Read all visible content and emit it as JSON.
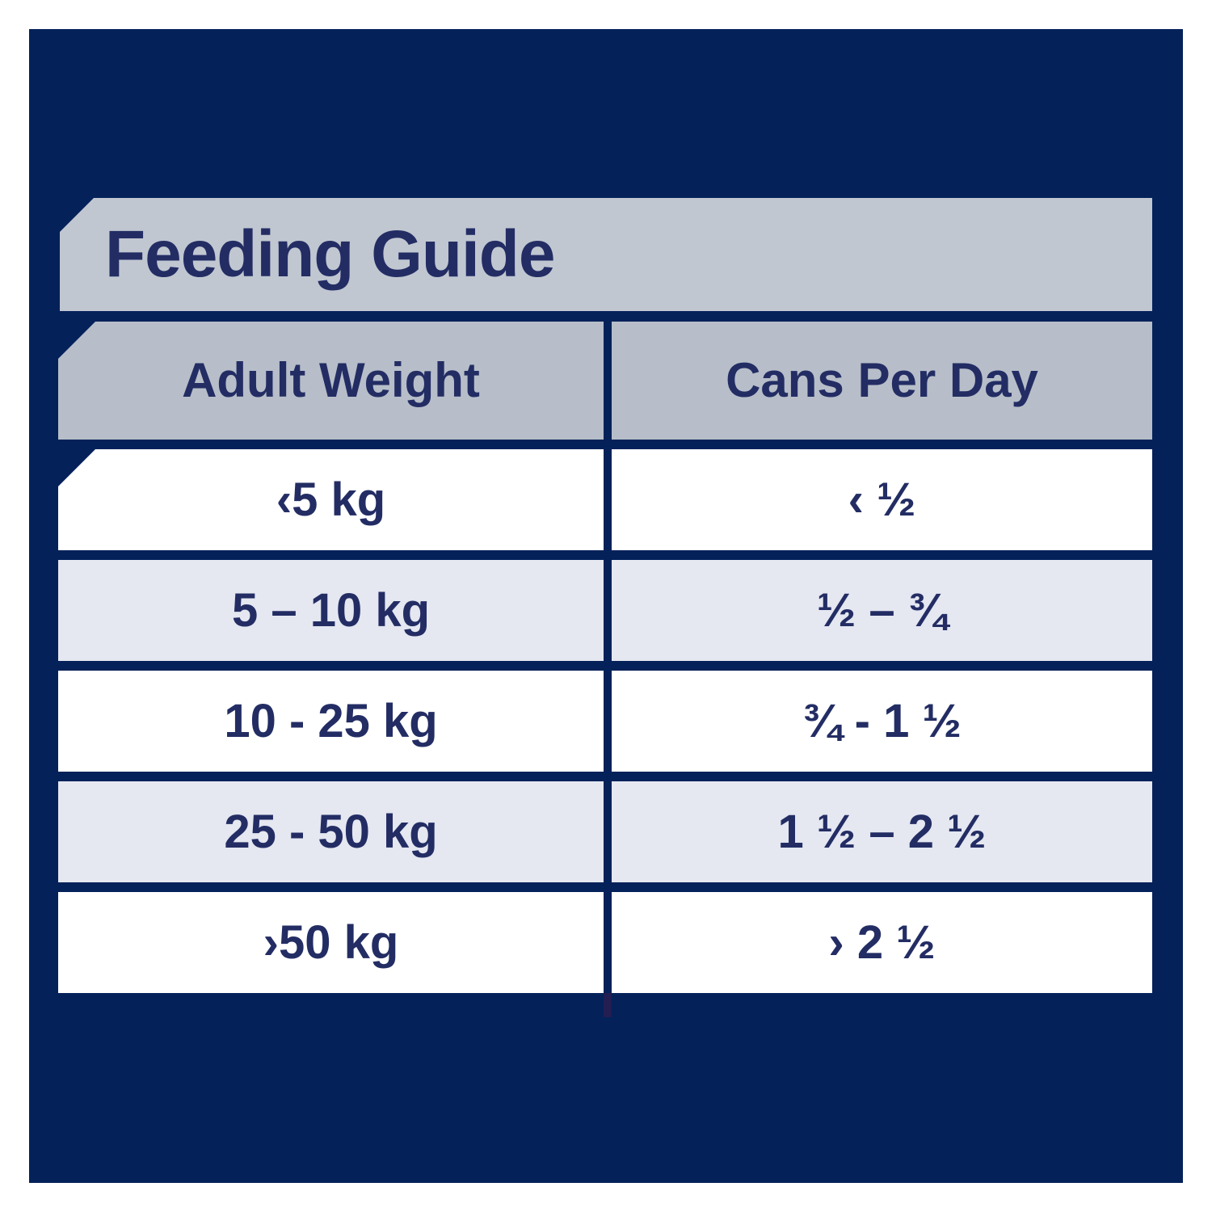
{
  "title": "Feeding Guide",
  "colors": {
    "panel_navy": "#04215a",
    "banner_gray": "#c1c7d1",
    "header_gray": "#b7bec9",
    "row_white": "#ffffff",
    "row_alt_lavender": "#e5e7f1",
    "text_navy": "#232d64"
  },
  "table": {
    "headers": [
      "Adult Weight",
      "Cans Per Day"
    ],
    "rows": [
      {
        "weight": "‹5 kg",
        "cans": "‹ ½"
      },
      {
        "weight": "5 – 10 kg",
        "cans": "½ – ¾"
      },
      {
        "weight": "10 - 25 kg",
        "cans": "¾ - 1 ½"
      },
      {
        "weight": "25 - 50 kg",
        "cans": "1 ½ – 2 ½"
      },
      {
        "weight": "›50 kg",
        "cans": "› 2 ½"
      }
    ]
  },
  "chart_data": {
    "type": "table",
    "title": "Feeding Guide",
    "columns": [
      "Adult Weight",
      "Cans Per Day"
    ],
    "rows": [
      [
        "‹5 kg",
        "‹ ½"
      ],
      [
        "5 – 10 kg",
        "½ – ¾"
      ],
      [
        "10 - 25 kg",
        "¾ - 1 ½"
      ],
      [
        "25 - 50 kg",
        "1 ½ – 2 ½"
      ],
      [
        "›50 kg",
        "› 2 ½"
      ]
    ]
  }
}
